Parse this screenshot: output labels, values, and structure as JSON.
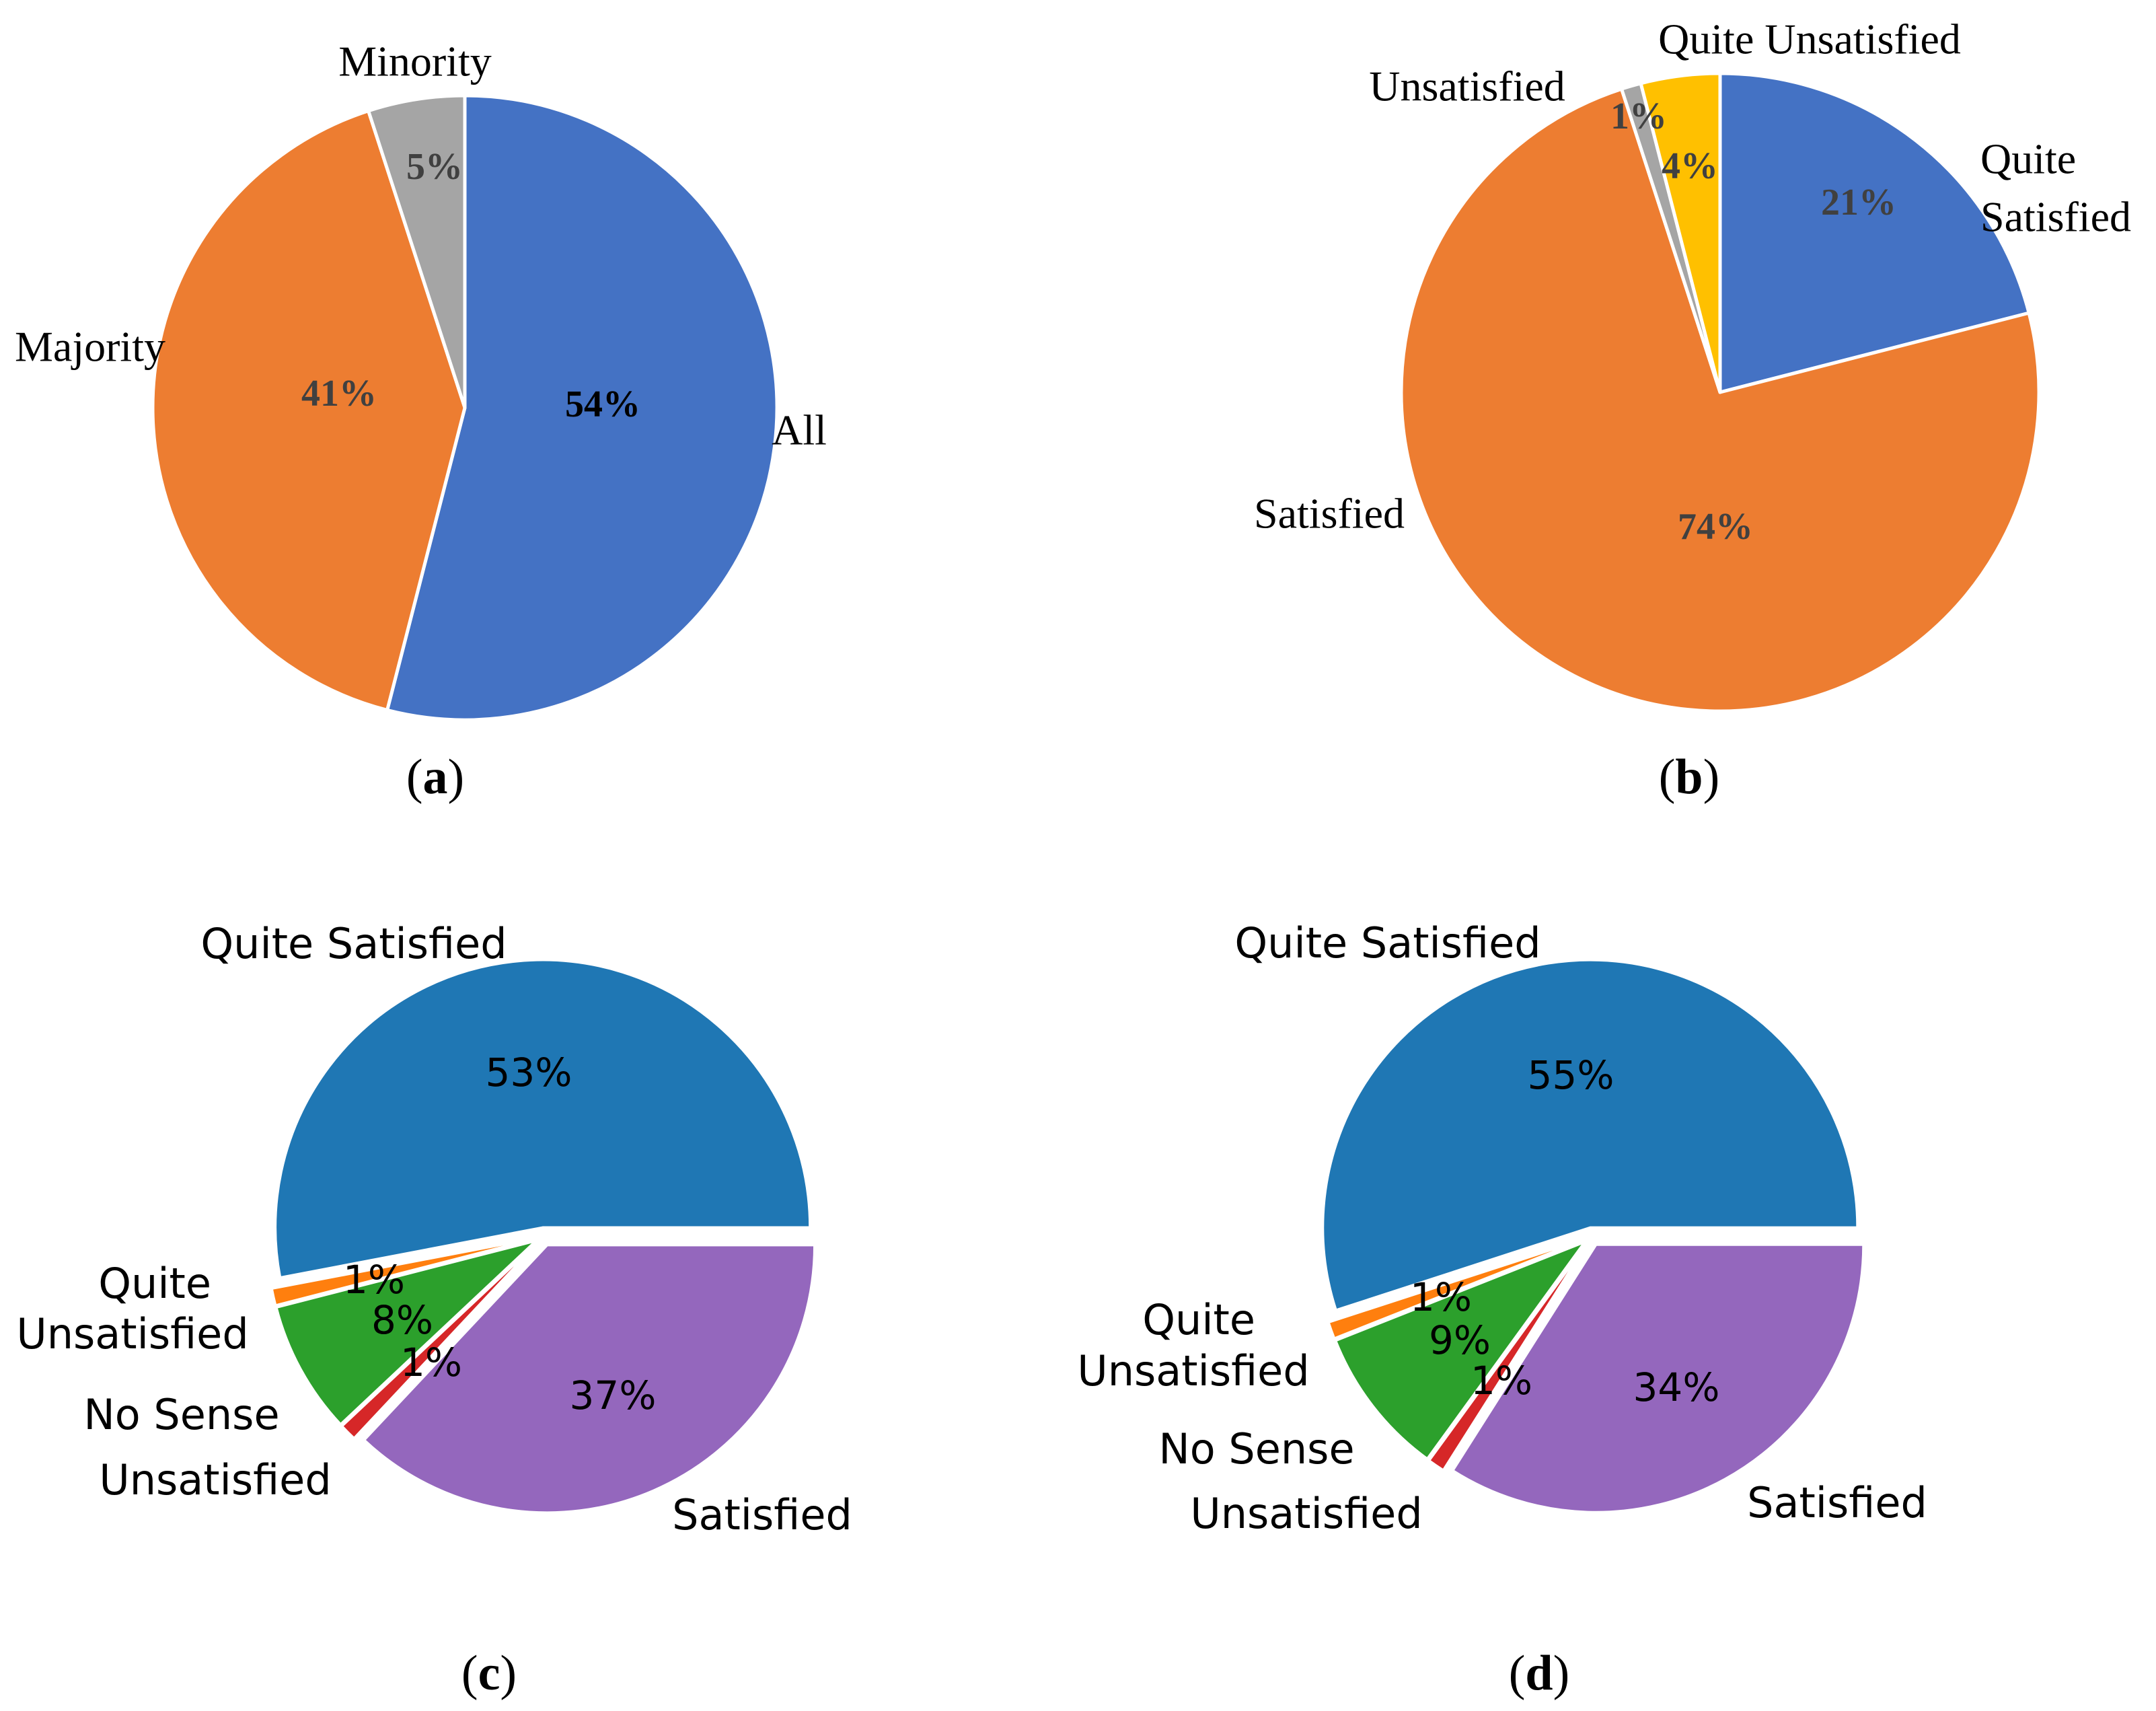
{
  "chart_data": [
    {
      "id": "a",
      "type": "pie",
      "caption": "(a)",
      "caption_letter": "a",
      "style": "excel",
      "slices": [
        {
          "label": "All",
          "value": 54,
          "percent_label": "54%",
          "color": "#4472C4",
          "pct_color": "#000000"
        },
        {
          "label": "Majority",
          "value": 41,
          "percent_label": "41%",
          "color": "#ED7D31",
          "pct_color": "#404040"
        },
        {
          "label": "Minority",
          "value": 5,
          "percent_label": "5%",
          "color": "#A5A5A5",
          "pct_color": "#404040"
        }
      ]
    },
    {
      "id": "b",
      "type": "pie",
      "caption": "(b)",
      "caption_letter": "b",
      "style": "excel",
      "slices": [
        {
          "label": "Quite Satisfied",
          "value": 21,
          "percent_label": "21%",
          "color": "#4472C4",
          "pct_color": "#404040"
        },
        {
          "label": "Satisfied",
          "value": 74,
          "percent_label": "74%",
          "color": "#ED7D31",
          "pct_color": "#404040"
        },
        {
          "label": "Unsatisfied",
          "value": 1,
          "percent_label": "1%",
          "color": "#A5A5A5",
          "pct_color": "#404040"
        },
        {
          "label": "Quite Unsatisfied",
          "value": 4,
          "percent_label": "4%",
          "color": "#FFC000",
          "pct_color": "#404040"
        }
      ]
    },
    {
      "id": "c",
      "type": "pie",
      "caption": "(c)",
      "caption_letter": "c",
      "style": "matplotlib",
      "slices": [
        {
          "label": "Quite Satisfied",
          "value": 53,
          "percent_label": "53%",
          "color": "#1F77B4"
        },
        {
          "label": "Quite Unsatisfied",
          "value": 1,
          "percent_label": "1%",
          "color": "#FF7F0E"
        },
        {
          "label": "No Sense",
          "value": 8,
          "percent_label": "8%",
          "color": "#2CA02C"
        },
        {
          "label": "Unsatisfied",
          "value": 1,
          "percent_label": "1%",
          "color": "#D62728"
        },
        {
          "label": "Satisfied",
          "value": 37,
          "percent_label": "37%",
          "color": "#9467BD"
        }
      ]
    },
    {
      "id": "d",
      "type": "pie",
      "caption": "(d)",
      "caption_letter": "d",
      "style": "matplotlib",
      "slices": [
        {
          "label": "Quite Satisfied",
          "value": 55,
          "percent_label": "55%",
          "color": "#1F77B4"
        },
        {
          "label": "Quite Unsatisfied",
          "value": 1,
          "percent_label": "1%",
          "color": "#FF7F0E"
        },
        {
          "label": "No Sense",
          "value": 9,
          "percent_label": "9%",
          "color": "#2CA02C"
        },
        {
          "label": "Unsatisfied",
          "value": 1,
          "percent_label": "1%",
          "color": "#D62728"
        },
        {
          "label": "Satisfied",
          "value": 34,
          "percent_label": "34%",
          "color": "#9467BD"
        }
      ]
    }
  ]
}
